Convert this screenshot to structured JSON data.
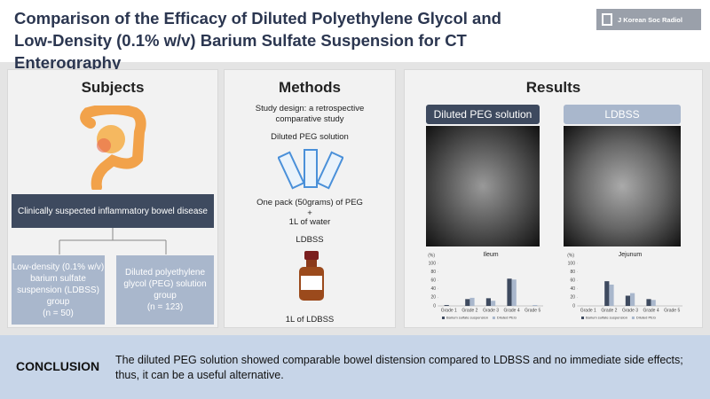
{
  "header": {
    "title": "Comparison of the Efficacy of Diluted Polyethylene Glycol and Low-Density (0.1% w/v) Barium Sulfate Suspension for CT Enterography",
    "journal": "J Korean Soc Radiol"
  },
  "subjects": {
    "heading": "Subjects",
    "condition": "Clinically suspected inflammatory bowel disease",
    "groups": [
      {
        "label": "Low-density (0.1% w/v) barium sulfate suspension (LDBSS) group",
        "n": "(n = 50)"
      },
      {
        "label": "Diluted polyethylene glycol (PEG) solution group",
        "n": "(n = 123)"
      }
    ]
  },
  "methods": {
    "heading": "Methods",
    "design": "Study design: a retrospective comparative study",
    "peg": "Diluted PEG solution",
    "peg_recipe": "One pack (50grams) of PEG",
    "plus": "+",
    "water": "1L of water",
    "ldbss": "LDBSS",
    "ldbss_amount": "1L of LDBSS"
  },
  "results": {
    "heading": "Results",
    "tabs": [
      "Diluted PEG solution",
      "LDBSS"
    ]
  },
  "chart_data": [
    {
      "type": "bar",
      "title": "Ileum",
      "y_label": "(%)",
      "categories": [
        "Grade 1",
        "Grade 2",
        "Grade 3",
        "Grade 4",
        "Grade 5"
      ],
      "series": [
        {
          "name": "Barium sulfate suspension",
          "color": "#3e4a5f",
          "values": [
            2,
            16,
            18,
            64,
            0
          ]
        },
        {
          "name": "Diluted PEG",
          "color": "#a9b7cc",
          "values": [
            0,
            19,
            12,
            62,
            2
          ]
        }
      ],
      "ylim": [
        0,
        100
      ],
      "yticks": [
        0,
        20,
        40,
        60,
        80,
        100
      ]
    },
    {
      "type": "bar",
      "title": "Jejunum",
      "y_label": "(%)",
      "categories": [
        "Grade 1",
        "Grade 2",
        "Grade 3",
        "Grade 4",
        "Grade 5"
      ],
      "series": [
        {
          "name": "Barium sulfate suspension",
          "color": "#3e4a5f",
          "values": [
            0,
            58,
            24,
            16,
            0
          ]
        },
        {
          "name": "Diluted PEG",
          "color": "#a9b7cc",
          "values": [
            0,
            50,
            30,
            14,
            0
          ]
        }
      ],
      "ylim": [
        0,
        100
      ],
      "yticks": [
        0,
        20,
        40,
        60,
        80,
        100
      ]
    }
  ],
  "conclusion": {
    "label": "CONCLUSION",
    "text": "The diluted PEG solution showed comparable bowel distension compared to LDBSS and no immediate side effects; thus, it can be a useful alternative."
  }
}
